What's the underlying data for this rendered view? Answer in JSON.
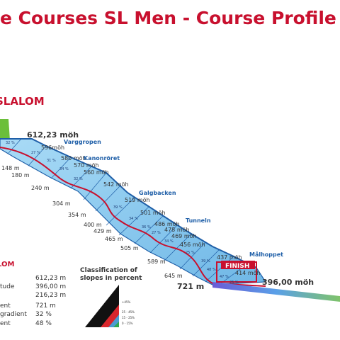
{
  "header": {
    "title": "e Courses SL Men - Course Profile"
  },
  "section": {
    "slalom_title": "SLALOM",
    "slalom_small": "LOM"
  },
  "altitudes": [
    "612,23 möh",
    "596möh",
    "580 möh",
    "570 möh",
    "560 möh",
    "542 möh",
    "519 möh",
    "501 möh",
    "486 möh",
    "478 möh",
    "469 möh",
    "456 möh",
    "437 möh",
    "414 möh",
    "396,00 möh"
  ],
  "distances": [
    "148 m",
    "180 m",
    "240 m",
    "304 m",
    "354 m",
    "400 m",
    "429 m",
    "465 m",
    "505 m",
    "589 m",
    "645 m",
    "721 m"
  ],
  "slope_percents": [
    "32 %",
    "27 %",
    "31 %",
    "34 %",
    "32 %",
    "39 %",
    "34 %",
    "36 %",
    "27 %",
    "34 %",
    "25 %",
    "39 %",
    "48 %",
    "47 %",
    "25 %"
  ],
  "places": [
    "Varggropen",
    "Kanonröret",
    "Galgbacken",
    "Tunneln",
    "Målhoppet"
  ],
  "finish_label": "FINISH",
  "stats": {
    "rows": [
      {
        "label": "",
        "value": "612,23 m"
      },
      {
        "label": "tude",
        "value": "396,00 m"
      },
      {
        "label": "",
        "value": "216,23 m"
      },
      {
        "label": "ent",
        "value": "721 m"
      },
      {
        "label": "gradient",
        "value": "32 %"
      },
      {
        "label": "ent",
        "value": "48 %"
      }
    ]
  },
  "classification": {
    "title_line1": "Classification of",
    "title_line2": "slopes in percent",
    "legend": [
      {
        "label": "+45%",
        "color": "#111111"
      },
      {
        "label": "25 - 45%",
        "color": "#d9262c"
      },
      {
        "label": "15 - 25%",
        "color": "#4a9bd1"
      },
      {
        "label": "0 - 15%",
        "color": "#2fa84f"
      }
    ]
  },
  "colors": {
    "title_red": "#c8102e",
    "course_fill": "#8fcdf0",
    "course_edge": "#1f5fa8",
    "race_line": "#c8102e",
    "start_green": "#6bbf3a",
    "label_blue": "#1f5fa8"
  }
}
